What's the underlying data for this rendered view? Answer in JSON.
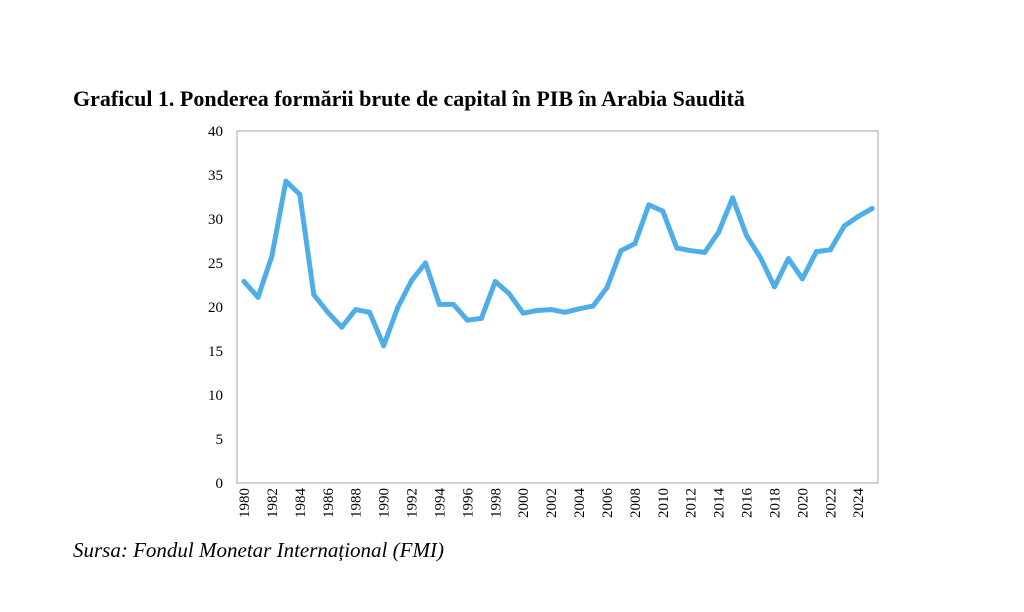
{
  "chart_data": {
    "type": "line",
    "title": "Graficul 1. Ponderea formării brute de capital în PIB în Arabia Saudită",
    "source": "Sursa: Fondul Monetar Internațional (FMI)",
    "xlabel": "",
    "ylabel": "",
    "ylim": [
      0,
      40
    ],
    "yticks": [
      0,
      5,
      10,
      15,
      20,
      25,
      30,
      35,
      40
    ],
    "xticks": [
      1980,
      1982,
      1984,
      1986,
      1988,
      1990,
      1992,
      1994,
      1996,
      1998,
      2000,
      2002,
      2004,
      2006,
      2008,
      2010,
      2012,
      2014,
      2016,
      2018,
      2020,
      2022,
      2024
    ],
    "grid": false,
    "legend": "none",
    "line_color": "#4FAEE8",
    "series": [
      {
        "x": [
          1980,
          1981,
          1982,
          1983,
          1984,
          1985,
          1986,
          1987,
          1988,
          1989,
          1990,
          1991,
          1992,
          1993,
          1994,
          1995,
          1996,
          1997,
          1998,
          1999,
          2000,
          2001,
          2002,
          2003,
          2004,
          2005,
          2006,
          2007,
          2008,
          2009,
          2010,
          2011,
          2012,
          2013,
          2014,
          2015,
          2016,
          2017,
          2018,
          2019,
          2020,
          2021,
          2022,
          2023,
          2024,
          2025
        ],
        "values": [
          22.9,
          21.1,
          25.8,
          34.3,
          32.8,
          21.4,
          19.4,
          17.7,
          19.7,
          19.4,
          15.6,
          19.9,
          23.0,
          25.0,
          20.3,
          20.3,
          18.5,
          18.7,
          22.9,
          21.5,
          19.3,
          19.6,
          19.7,
          19.4,
          19.8,
          20.1,
          22.2,
          26.4,
          27.2,
          31.6,
          30.9,
          26.7,
          26.4,
          26.2,
          28.5,
          32.4,
          28.1,
          25.6,
          22.3,
          25.5,
          23.2,
          26.3,
          26.5,
          29.2,
          30.3,
          31.2
        ]
      }
    ]
  }
}
